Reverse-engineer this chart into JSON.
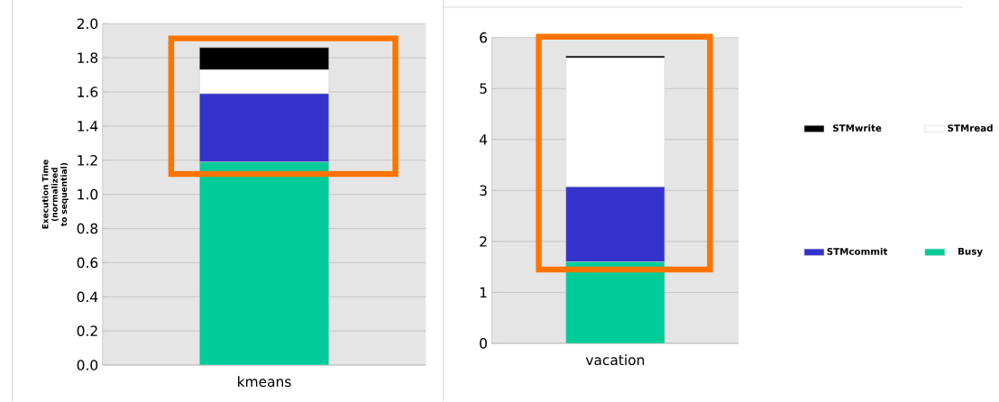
{
  "chart_data": [
    {
      "type": "bar",
      "stacked": true,
      "categories": [
        "kmeans"
      ],
      "ylabel": "Execution Time (normalized to sequential)",
      "ylim": [
        0,
        2.0
      ],
      "yticks": [
        {
          "value": 0,
          "label": "0.0"
        },
        {
          "value": 0.2,
          "label": "0.2"
        },
        {
          "value": 0.4,
          "label": "0.4"
        },
        {
          "value": 0.6,
          "label": "0.6"
        },
        {
          "value": 0.8,
          "label": "0.8"
        },
        {
          "value": 1.0,
          "label": "1.0"
        },
        {
          "value": 1.2,
          "label": "1.2"
        },
        {
          "value": 1.4,
          "label": "1.4"
        },
        {
          "value": 1.6,
          "label": "1.6"
        },
        {
          "value": 1.8,
          "label": "1.8"
        },
        {
          "value": 2.0,
          "label": "2.0"
        }
      ],
      "grid": "y",
      "series": [
        {
          "color": "#00cc99",
          "values": [
            1.19
          ]
        },
        {
          "color": "#3333cc",
          "values": [
            0.4
          ]
        },
        {
          "color": "#ffffff",
          "values": [
            0.14
          ]
        },
        {
          "color": "#000000",
          "values": [
            0.13
          ]
        }
      ]
    },
    {
      "type": "bar",
      "stacked": true,
      "categories": [
        "vacation"
      ],
      "ylim": [
        0,
        6
      ],
      "yticks": [
        0,
        1,
        2,
        3,
        4,
        5,
        6
      ],
      "grid": "y",
      "legend": "right",
      "series": [
        {
          "name": "Busy",
          "color": "#00cc99",
          "values": [
            1.6
          ]
        },
        {
          "name": "STMcommit",
          "color": "#3333cc",
          "values": [
            1.47
          ]
        },
        {
          "name": "STMread",
          "color": "#ffffff",
          "values": [
            2.53
          ]
        },
        {
          "name": "STMwrite",
          "color": "#000000",
          "values": [
            0.04
          ]
        }
      ]
    }
  ]
}
